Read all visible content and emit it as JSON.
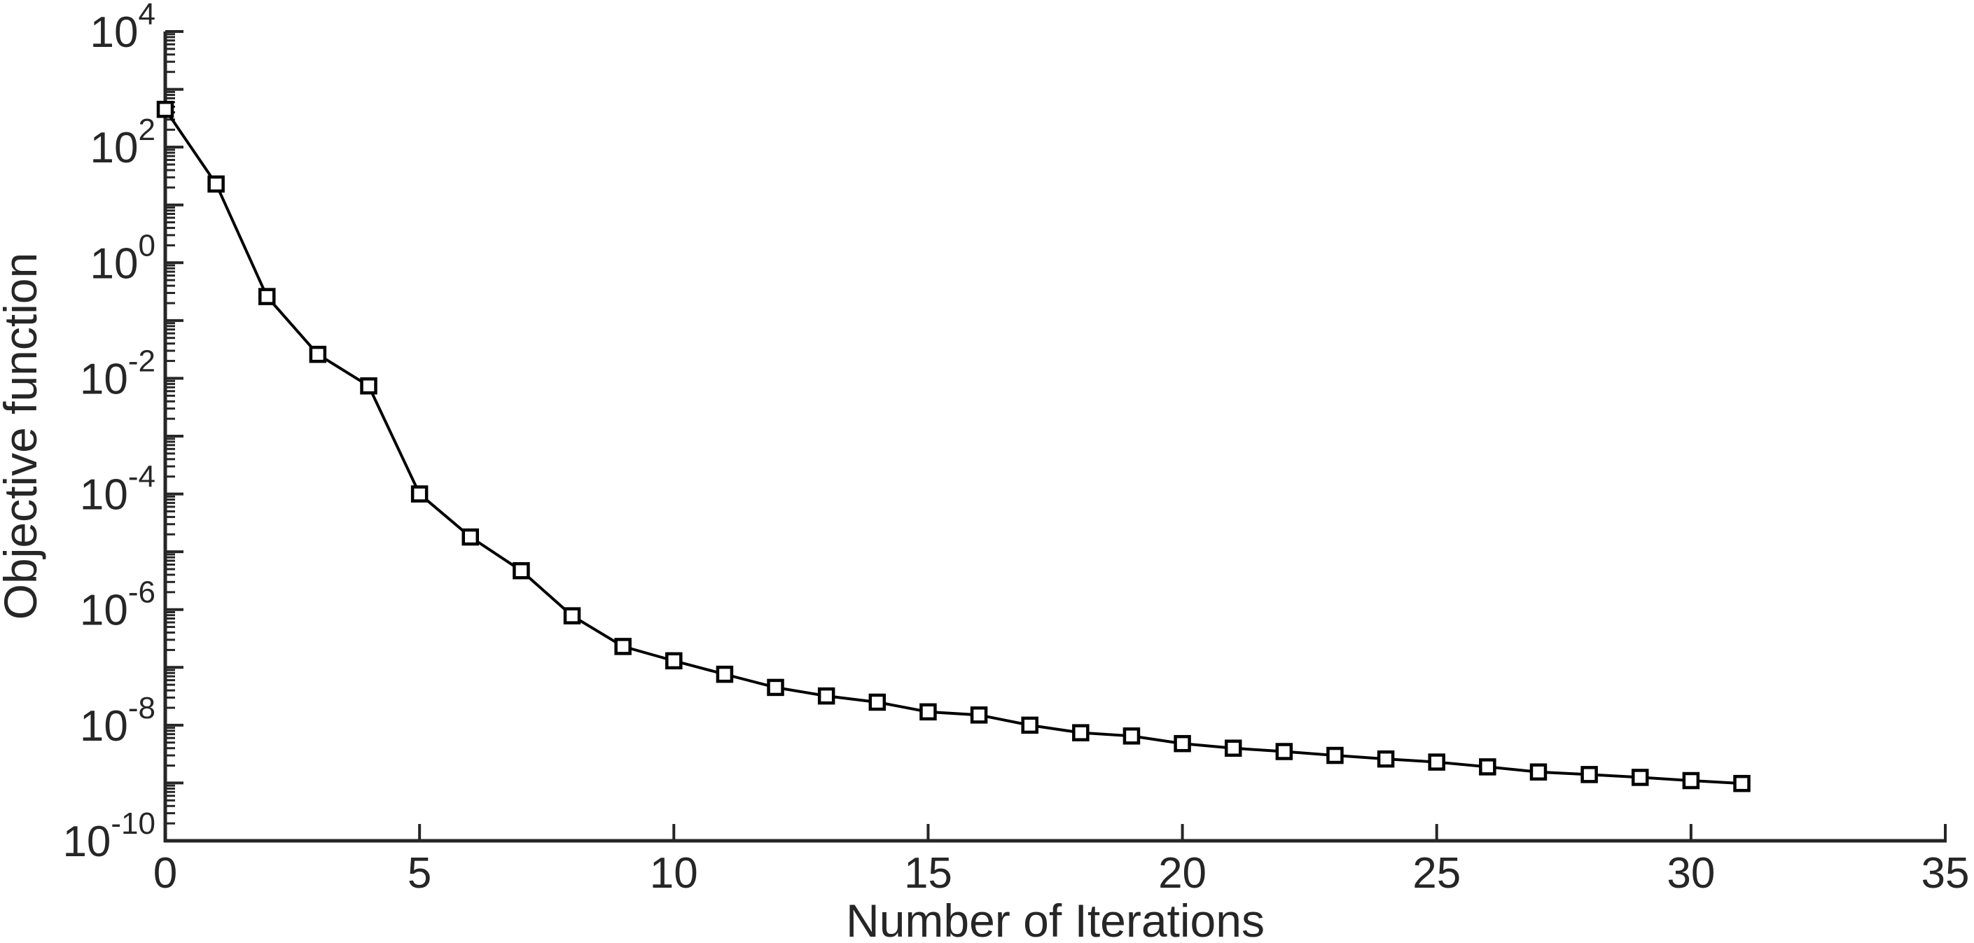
{
  "figure": {
    "background_color": "#ffffff",
    "axis_color": "#262626",
    "line_color": "#000000",
    "marker_fill": "#ffffff"
  },
  "chart_data": {
    "type": "line",
    "title": "",
    "xlabel": "Number of Iterations",
    "ylabel": "Objective function",
    "y_scale": "log",
    "grid": false,
    "legend_position": "none",
    "marker": "open-square",
    "xlim": [
      0,
      35
    ],
    "ylim": [
      1e-10,
      10000.0
    ],
    "x_ticks": [
      0,
      5,
      10,
      15,
      20,
      25,
      30,
      35
    ],
    "y_tick_labels": [
      "10^4",
      "10^2",
      "10^0",
      "10^-2",
      "10^-4",
      "10^-6",
      "10^-8",
      "10^-10"
    ],
    "y_tick_exponents": [
      4,
      2,
      0,
      -2,
      -4,
      -6,
      -8,
      -10
    ],
    "x": [
      0,
      1,
      2,
      3,
      4,
      5,
      6,
      7,
      8,
      9,
      10,
      11,
      12,
      13,
      14,
      15,
      16,
      17,
      18,
      19,
      20,
      21,
      22,
      23,
      24,
      25,
      26,
      27,
      28,
      29,
      30,
      31
    ],
    "y": [
      450,
      23,
      0.26,
      0.026,
      0.0074,
      0.0001,
      1.8e-05,
      4.7e-06,
      7.8e-07,
      2.3e-07,
      1.3e-07,
      7.6e-08,
      4.5e-08,
      3.2e-08,
      2.5e-08,
      1.7e-08,
      1.5e-08,
      1e-08,
      7.4e-09,
      6.5e-09,
      4.8e-09,
      4e-09,
      3.5e-09,
      3e-09,
      2.6e-09,
      2.3e-09,
      1.9e-09,
      1.55e-09,
      1.4e-09,
      1.25e-09,
      1.1e-09,
      9.8e-10
    ]
  }
}
